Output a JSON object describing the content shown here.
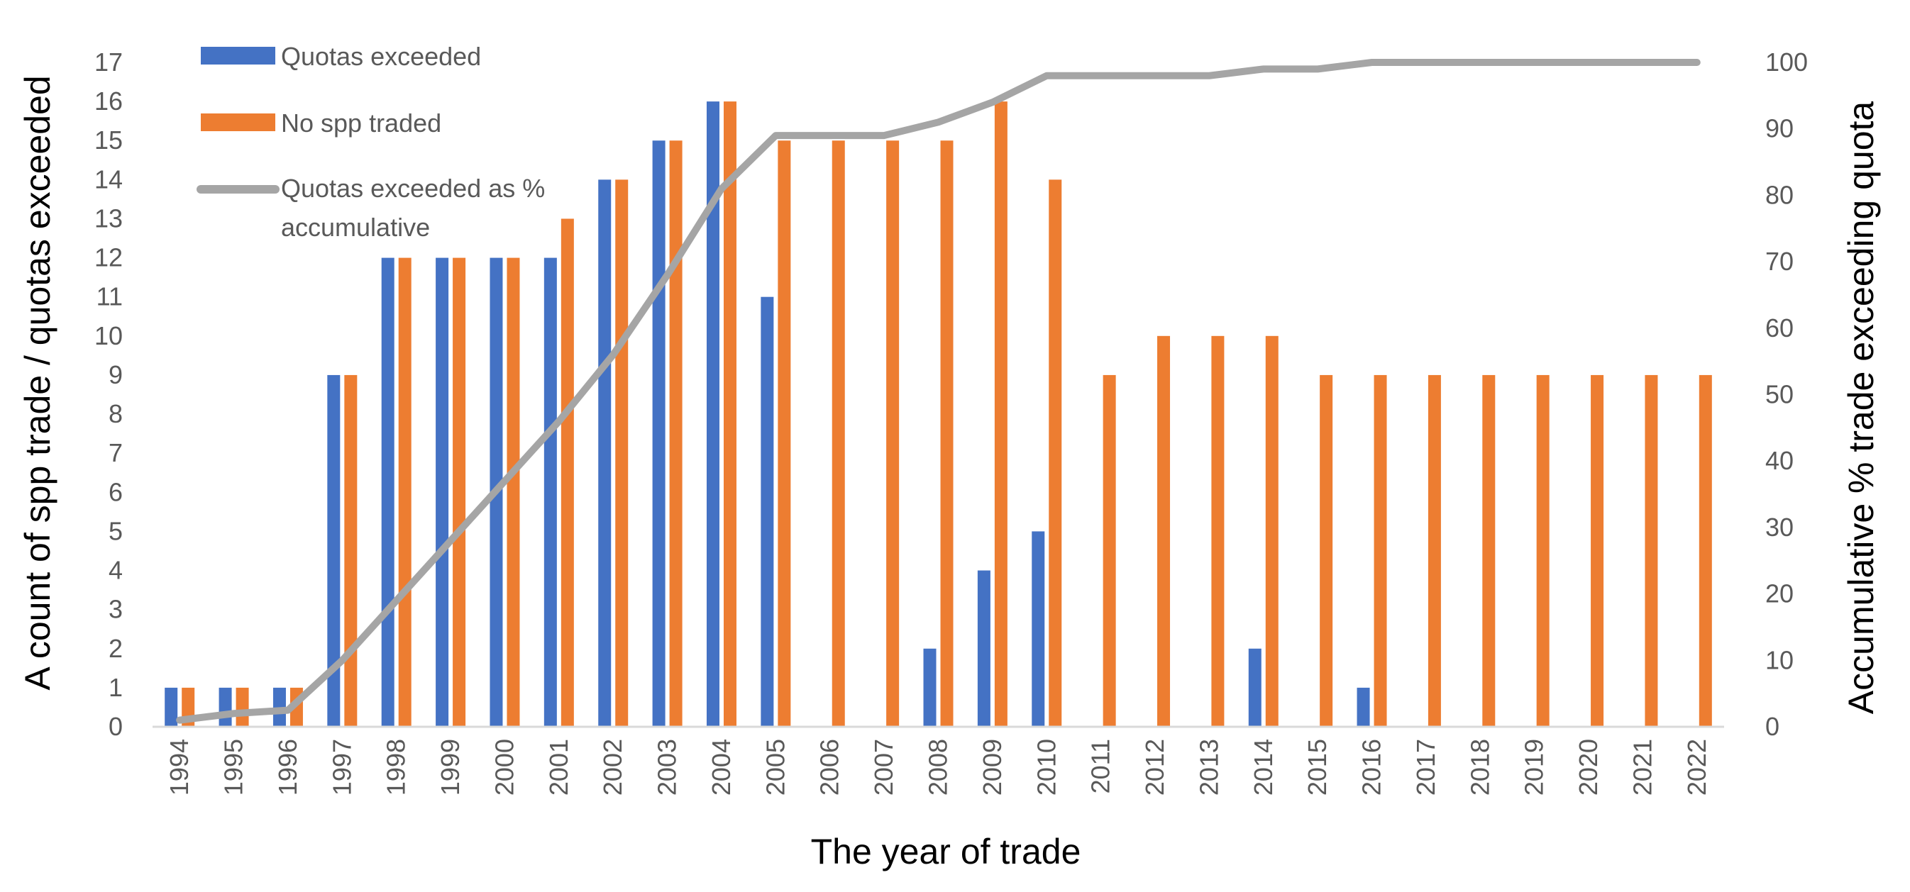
{
  "chart_data": {
    "type": "bar",
    "categories": [
      "1994",
      "1995",
      "1996",
      "1997",
      "1998",
      "1999",
      "2000",
      "2001",
      "2002",
      "2003",
      "2004",
      "2005",
      "2006",
      "2007",
      "2008",
      "2009",
      "2010",
      "2011",
      "2012",
      "2013",
      "2014",
      "2015",
      "2016",
      "2017",
      "2018",
      "2019",
      "2020",
      "2021",
      "2022"
    ],
    "series": [
      {
        "name": "Quotas exceeded",
        "kind": "bar",
        "axis": "left",
        "color": "#4472C4",
        "values": [
          1,
          1,
          1,
          9,
          12,
          12,
          12,
          12,
          14,
          15,
          16,
          11,
          0,
          0,
          2,
          4,
          5,
          0,
          0,
          0,
          2,
          0,
          1,
          0,
          0,
          0,
          0,
          0,
          0
        ]
      },
      {
        "name": "No spp traded",
        "kind": "bar",
        "axis": "left",
        "color": "#ED7D31",
        "values": [
          1,
          1,
          1,
          9,
          12,
          12,
          12,
          13,
          14,
          15,
          16,
          15,
          15,
          15,
          15,
          16,
          14,
          9,
          10,
          10,
          10,
          9,
          9,
          9,
          9,
          9,
          9,
          9,
          9
        ]
      },
      {
        "name": "Quotas exceeded as % accumulative",
        "name_lines": [
          "Quotas exceeded as %",
          "accumulative"
        ],
        "kind": "line",
        "axis": "right",
        "color": "#A5A5A5",
        "values": [
          1,
          2,
          2.5,
          10,
          19,
          28,
          37,
          46,
          56,
          68,
          81,
          89,
          89,
          89,
          91,
          94,
          98,
          98,
          98,
          98,
          99,
          99,
          100,
          100,
          100,
          100,
          100,
          100,
          100
        ]
      }
    ],
    "xlabel": "The year of trade",
    "ylabel": "A count of spp trade / quotas exceeded",
    "y2label": "Accumulative % trade exceeding quota",
    "ylim": [
      0,
      17
    ],
    "y2lim": [
      0,
      100
    ],
    "yticks": [
      0,
      1,
      2,
      3,
      4,
      5,
      6,
      7,
      8,
      9,
      10,
      11,
      12,
      13,
      14,
      15,
      16,
      17
    ],
    "y2ticks": [
      0,
      10,
      20,
      30,
      40,
      50,
      60,
      70,
      80,
      90,
      100
    ],
    "grid": false,
    "legend_position": "top-left"
  }
}
